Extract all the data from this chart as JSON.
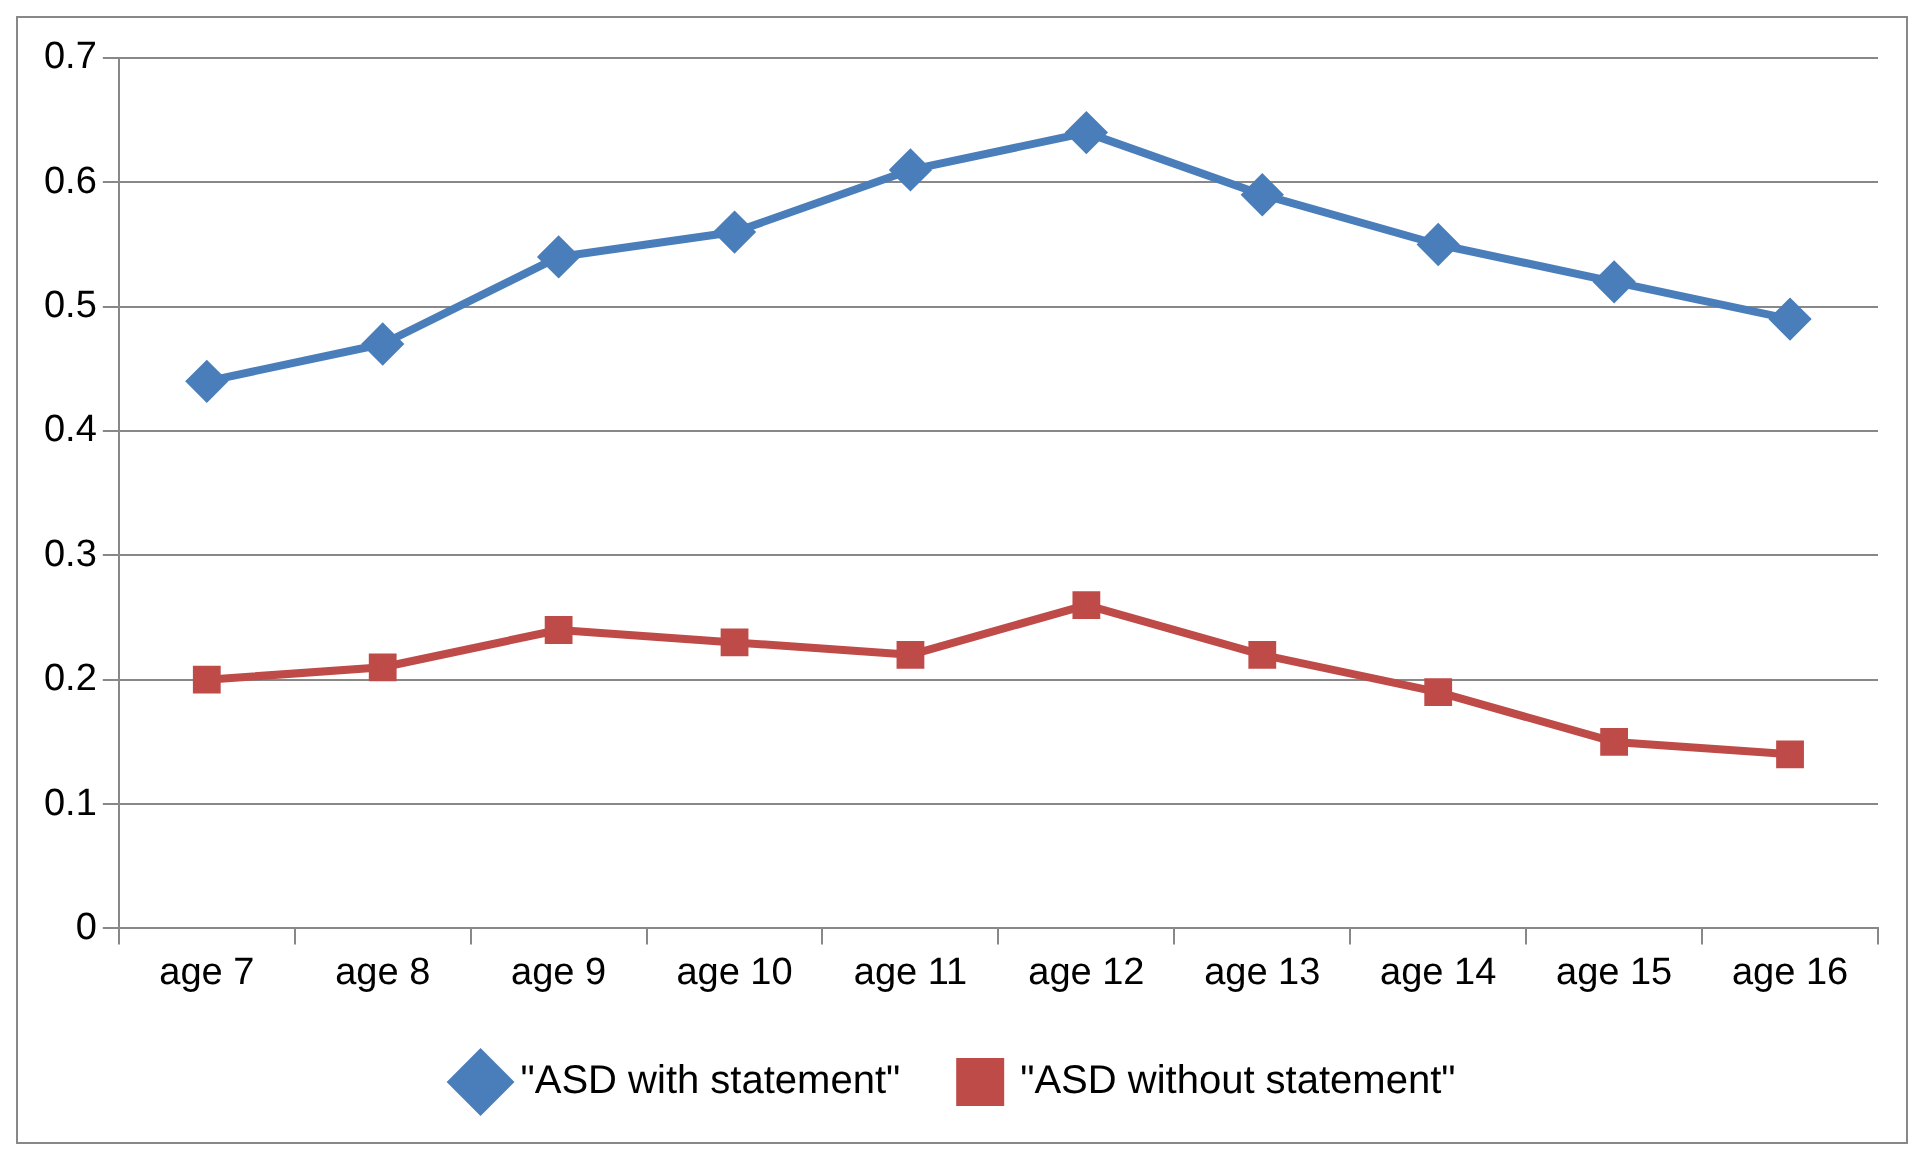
{
  "chart_data": {
    "type": "line",
    "categories": [
      "age 7",
      "age 8",
      "age 9",
      "age 10",
      "age 11",
      "age 12",
      "age 13",
      "age 14",
      "age 15",
      "age 16"
    ],
    "series": [
      {
        "name": "\"ASD with statement\"",
        "color": "#4a7ebb",
        "marker": "diamond",
        "values": [
          0.44,
          0.47,
          0.54,
          0.56,
          0.61,
          0.64,
          0.59,
          0.55,
          0.52,
          0.49
        ]
      },
      {
        "name": "\"ASD without statement\"",
        "color": "#be4b48",
        "marker": "square",
        "values": [
          0.2,
          0.21,
          0.24,
          0.23,
          0.22,
          0.26,
          0.22,
          0.19,
          0.15,
          0.14
        ]
      }
    ],
    "ylim": [
      0,
      0.7
    ],
    "yticks": [
      0,
      0.1,
      0.2,
      0.3,
      0.4,
      0.5,
      0.6,
      0.7
    ],
    "grid": "y",
    "legend": "bottom",
    "line_style": "solid"
  }
}
